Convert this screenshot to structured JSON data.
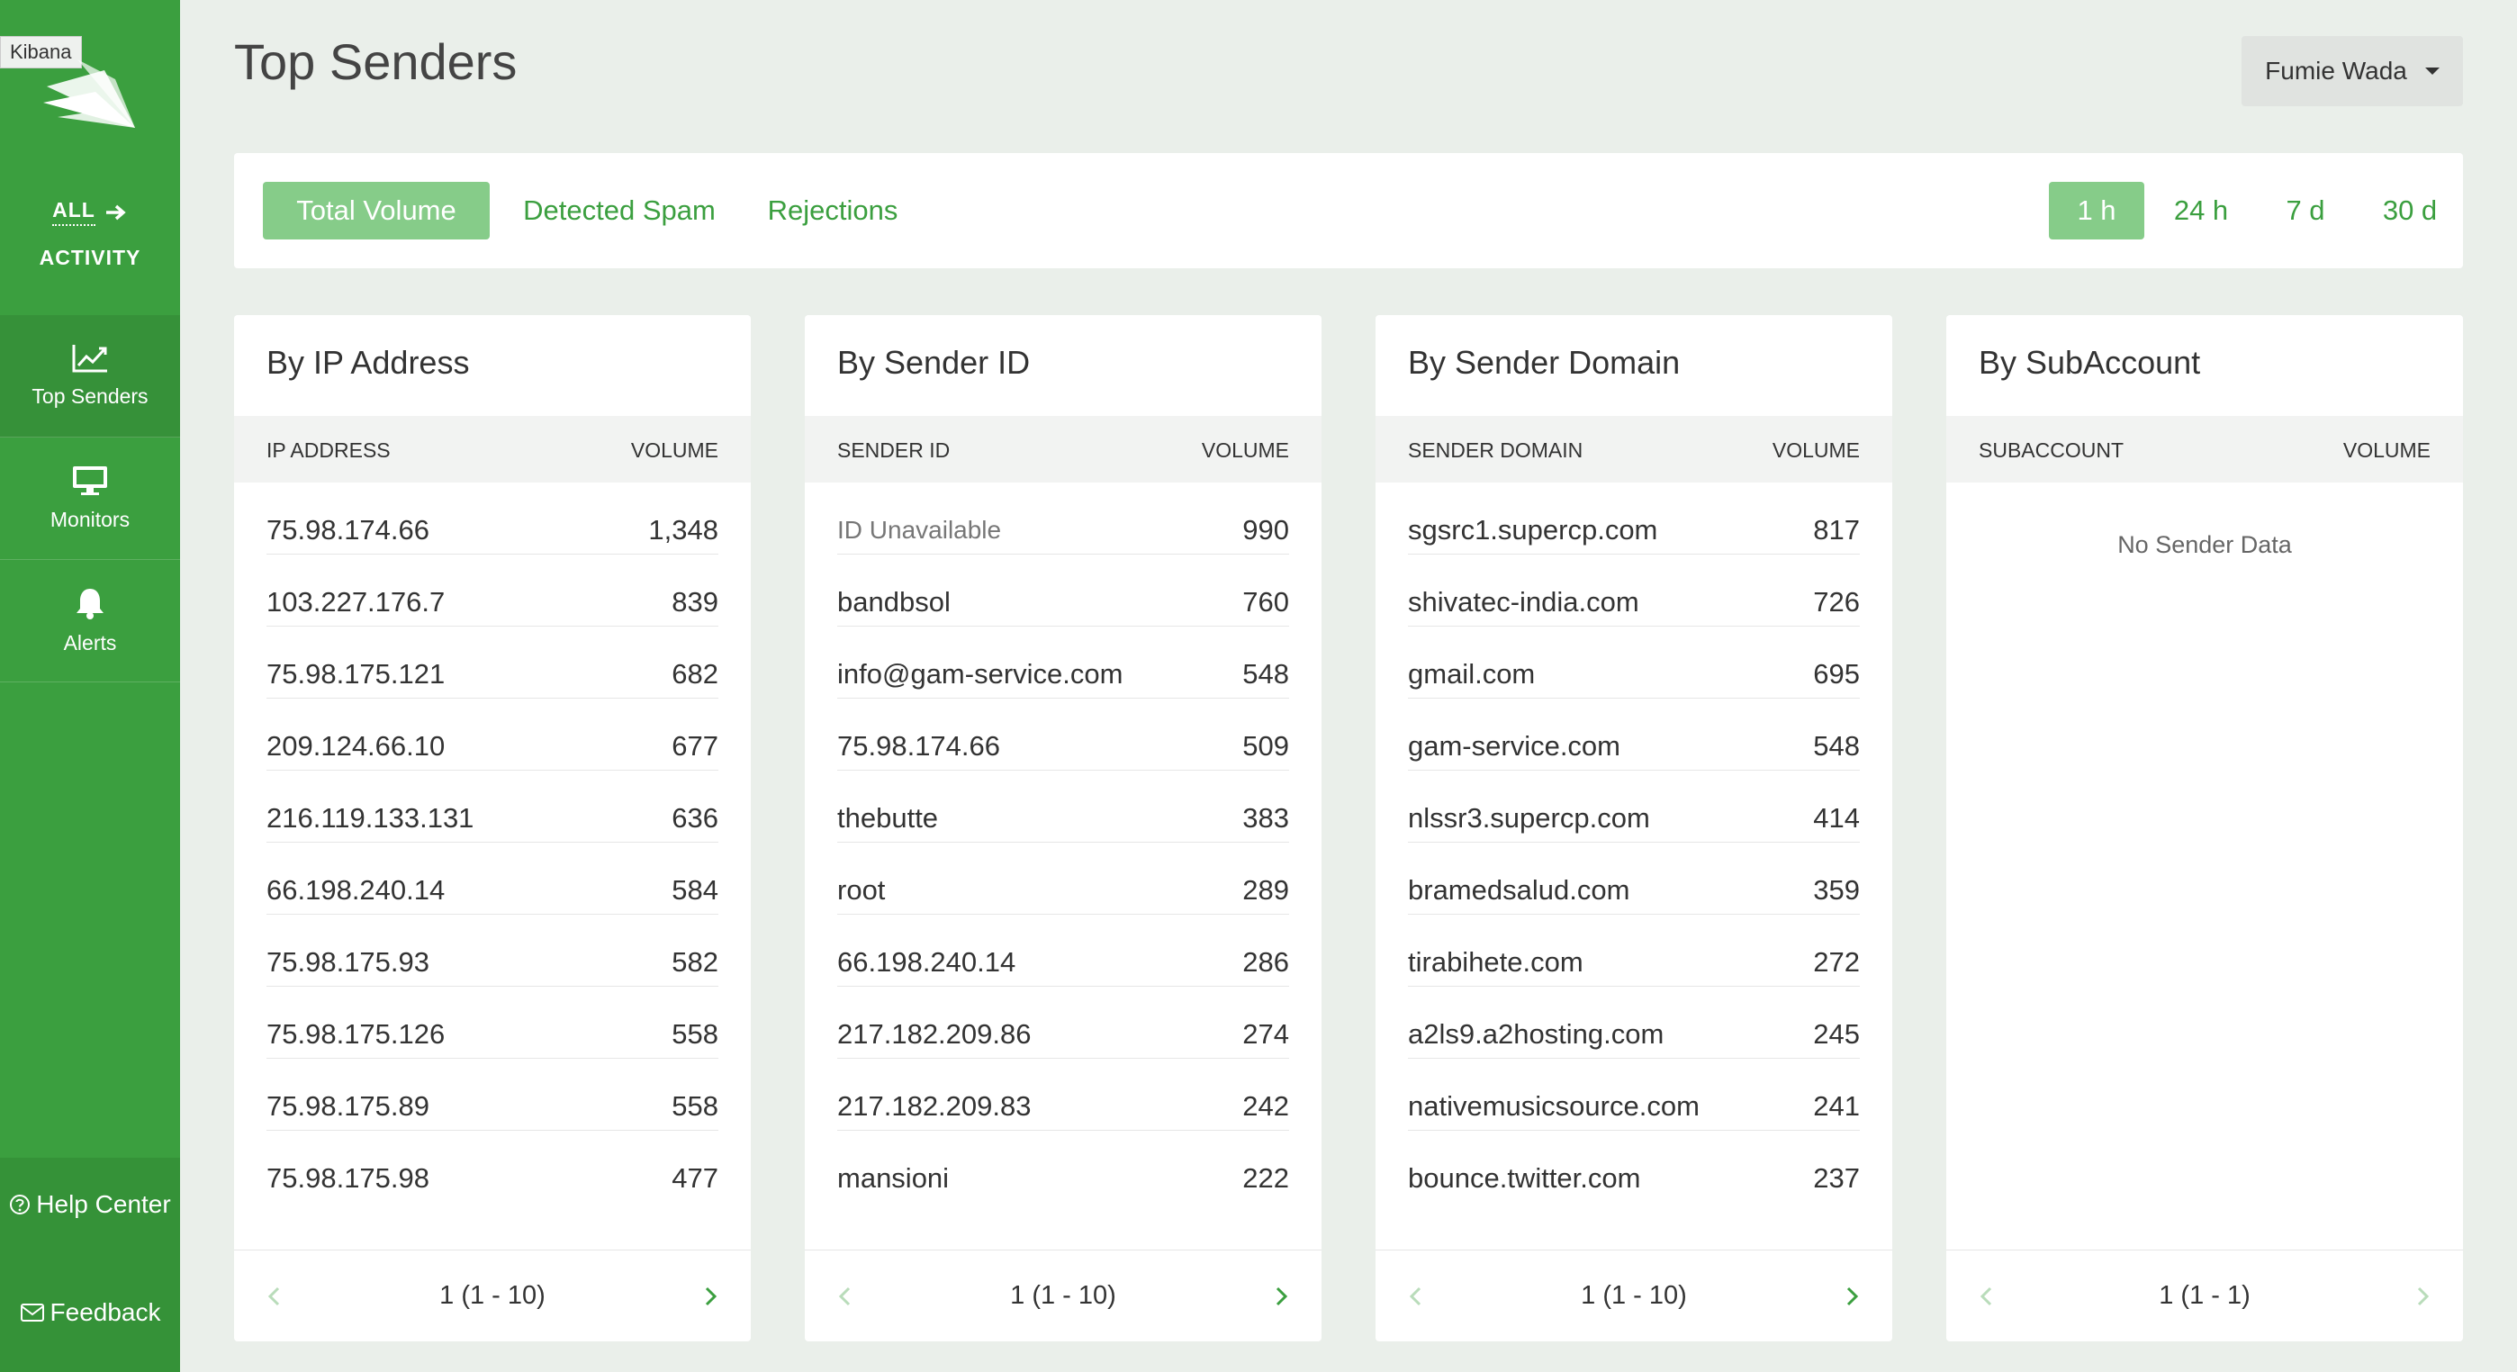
{
  "sidebar": {
    "kibana_tag": "Kibana",
    "all": "ALL",
    "activity": "ACTIVITY",
    "items": [
      {
        "label": "Top Senders"
      },
      {
        "label": "Monitors"
      },
      {
        "label": "Alerts"
      }
    ],
    "help_center": "Help Center",
    "feedback": "Feedback"
  },
  "header": {
    "title": "Top Senders",
    "user": "Fumie Wada"
  },
  "metric_tabs": [
    "Total Volume",
    "Detected Spam",
    "Rejections"
  ],
  "time_tabs": [
    "1 h",
    "24 h",
    "7 d",
    "30 d"
  ],
  "colors": {
    "accent": "#3b9f3f",
    "active_tab": "#86cc89"
  },
  "cards": [
    {
      "title": "By IP Address",
      "col1": "IP ADDRESS",
      "col2": "VOLUME",
      "rows": [
        [
          "75.98.174.66",
          "1,348"
        ],
        [
          "103.227.176.7",
          "839"
        ],
        [
          "75.98.175.121",
          "682"
        ],
        [
          "209.124.66.10",
          "677"
        ],
        [
          "216.119.133.131",
          "636"
        ],
        [
          "66.198.240.14",
          "584"
        ],
        [
          "75.98.175.93",
          "582"
        ],
        [
          "75.98.175.126",
          "558"
        ],
        [
          "75.98.175.89",
          "558"
        ],
        [
          "75.98.175.98",
          "477"
        ]
      ],
      "pagination": "1 (1 - 10)"
    },
    {
      "title": "By Sender ID",
      "col1": "SENDER ID",
      "col2": "VOLUME",
      "rows": [
        [
          "ID Unavailable",
          "990"
        ],
        [
          "bandbsol",
          "760"
        ],
        [
          "info@gam-service.com",
          "548"
        ],
        [
          "75.98.174.66",
          "509"
        ],
        [
          "thebutte",
          "383"
        ],
        [
          "root",
          "289"
        ],
        [
          "66.198.240.14",
          "286"
        ],
        [
          "217.182.209.86",
          "274"
        ],
        [
          "217.182.209.83",
          "242"
        ],
        [
          "mansioni",
          "222"
        ]
      ],
      "pagination": "1 (1 - 10)"
    },
    {
      "title": "By Sender Domain",
      "col1": "SENDER DOMAIN",
      "col2": "VOLUME",
      "rows": [
        [
          "sgsrc1.supercp.com",
          "817"
        ],
        [
          "shivatec-india.com",
          "726"
        ],
        [
          "gmail.com",
          "695"
        ],
        [
          "gam-service.com",
          "548"
        ],
        [
          "nlssr3.supercp.com",
          "414"
        ],
        [
          "bramedsalud.com",
          "359"
        ],
        [
          "tirabihete.com",
          "272"
        ],
        [
          "a2ls9.a2hosting.com",
          "245"
        ],
        [
          "nativemusicsource.com",
          "241"
        ],
        [
          "bounce.twitter.com",
          "237"
        ]
      ],
      "pagination": "1 (1 - 10)"
    },
    {
      "title": "By SubAccount",
      "col1": "SUBACCOUNT",
      "col2": "VOLUME",
      "rows": [],
      "empty": "No Sender Data",
      "pagination": "1 (1 - 1)"
    }
  ]
}
